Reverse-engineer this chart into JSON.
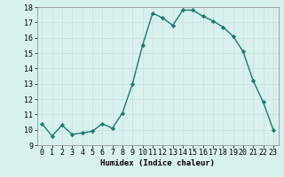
{
  "x": [
    0,
    1,
    2,
    3,
    4,
    5,
    6,
    7,
    8,
    9,
    10,
    11,
    12,
    13,
    14,
    15,
    16,
    17,
    18,
    19,
    20,
    21,
    22,
    23
  ],
  "y": [
    10.4,
    9.6,
    10.3,
    9.7,
    9.8,
    9.9,
    10.4,
    10.1,
    11.1,
    13.0,
    15.5,
    17.6,
    17.3,
    16.8,
    17.8,
    17.8,
    17.4,
    17.1,
    16.7,
    16.1,
    15.1,
    13.2,
    11.8,
    10.0
  ],
  "line_color": "#1a7a6e",
  "marker": "D",
  "marker_size": 2.2,
  "linewidth": 1.0,
  "bg_color": "#d8f0ee",
  "grid_color": "#c8dede",
  "xlabel": "Humidex (Indice chaleur)",
  "xlim": [
    -0.5,
    23.5
  ],
  "ylim": [
    9,
    18
  ],
  "yticks": [
    9,
    10,
    11,
    12,
    13,
    14,
    15,
    16,
    17,
    18
  ],
  "xticks": [
    0,
    1,
    2,
    3,
    4,
    5,
    6,
    7,
    8,
    9,
    10,
    11,
    12,
    13,
    14,
    15,
    16,
    17,
    18,
    19,
    20,
    21,
    22,
    23
  ],
  "xlabel_fontsize": 6.5,
  "tick_fontsize": 6.0
}
